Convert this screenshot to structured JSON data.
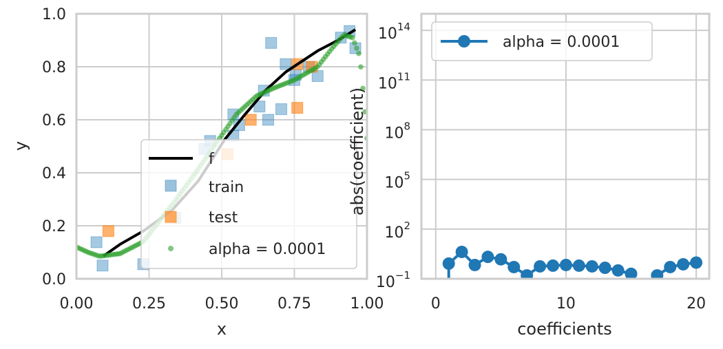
{
  "colors": {
    "train": "#1f77b4",
    "test": "#ff7f0e",
    "fit": "#2ca02c",
    "f": "#000000",
    "coef": "#1f77b4",
    "grid": "#cccccc"
  },
  "chart_data": [
    {
      "type": "scatter",
      "xlabel": "x",
      "ylabel": "y",
      "xlim": [
        0,
        1
      ],
      "ylim": [
        0,
        1
      ],
      "xticks": [
        "0.00",
        "0.25",
        "0.50",
        "0.75",
        "1.00"
      ],
      "xtick_values": [
        0,
        0.25,
        0.5,
        0.75,
        1.0
      ],
      "yticks": [
        "0.0",
        "0.2",
        "0.4",
        "0.6",
        "0.8",
        "1.0"
      ],
      "ytick_values": [
        0,
        0.2,
        0.4,
        0.6,
        0.8,
        1.0
      ],
      "grid": true,
      "legend_placement": "lower-right",
      "legend": [
        "f",
        "train",
        "test",
        "alpha = 0.0001"
      ],
      "f": {
        "x": [
          0.092,
          0.15,
          0.23,
          0.33,
          0.42,
          0.51,
          0.58,
          0.65,
          0.72,
          0.83,
          0.9,
          0.96
        ],
        "y": [
          0.085,
          0.13,
          0.18,
          0.26,
          0.37,
          0.525,
          0.62,
          0.71,
          0.78,
          0.86,
          0.9,
          0.94
        ]
      },
      "train": {
        "x": [
          0.069,
          0.09,
          0.23,
          0.325,
          0.34,
          0.44,
          0.46,
          0.54,
          0.56,
          0.54,
          0.63,
          0.645,
          0.66,
          0.705,
          0.67,
          0.72,
          0.75,
          0.755,
          0.8,
          0.83,
          0.91,
          0.94,
          0.96
        ],
        "y": [
          0.138,
          0.05,
          0.055,
          0.355,
          0.23,
          0.49,
          0.52,
          0.62,
          0.58,
          0.54,
          0.65,
          0.71,
          0.6,
          0.64,
          0.89,
          0.81,
          0.75,
          0.77,
          0.8,
          0.765,
          0.91,
          0.935,
          0.87
        ]
      },
      "test": {
        "x": [
          0.11,
          0.325,
          0.52,
          0.6,
          0.76,
          0.76,
          0.81
        ],
        "y": [
          0.18,
          0.23,
          0.47,
          0.6,
          0.81,
          0.645,
          0.8
        ]
      },
      "fit_alpha_0.0001": {
        "x": [
          0.0,
          0.04,
          0.08,
          0.15,
          0.23,
          0.33,
          0.41,
          0.48,
          0.55,
          0.62,
          0.68,
          0.75,
          0.83,
          0.88,
          0.92,
          0.95,
          0.975,
          0.99,
          1.0
        ],
        "y": [
          0.12,
          0.1,
          0.085,
          0.095,
          0.14,
          0.28,
          0.4,
          0.51,
          0.62,
          0.69,
          0.72,
          0.75,
          0.8,
          0.87,
          0.92,
          0.91,
          0.84,
          0.67,
          0.53
        ]
      }
    },
    {
      "type": "line",
      "xlabel": "coefficients",
      "ylabel": "abs(coefficient)",
      "yscale": "log",
      "ylim_log10": [
        -1,
        15
      ],
      "xlim": [
        -1.1,
        21
      ],
      "xticks": [
        "0",
        "10",
        "20"
      ],
      "xtick_values": [
        0,
        10,
        20
      ],
      "yticks_base": "10",
      "yticks_exp": [
        "−1",
        "2",
        "5",
        "8",
        "11",
        "14"
      ],
      "ytick_log10": [
        -1,
        2,
        5,
        8,
        11,
        14
      ],
      "grid": true,
      "legend_placement": "top-left",
      "legend": [
        "alpha = 0.0001"
      ],
      "series": [
        {
          "name": "alpha = 0.0001",
          "x": [
            1,
            2,
            3,
            4,
            5,
            6,
            7,
            8,
            9,
            10,
            11,
            12,
            13,
            14,
            15,
            16,
            17,
            18,
            19,
            20
          ],
          "y": [
            0.83,
            4.2,
            0.68,
            2.1,
            1.5,
            0.51,
            0.16,
            0.56,
            0.62,
            0.68,
            0.62,
            0.56,
            0.46,
            0.32,
            0.2,
            null,
            0.16,
            0.51,
            0.75,
            0.95
          ]
        }
      ]
    }
  ]
}
